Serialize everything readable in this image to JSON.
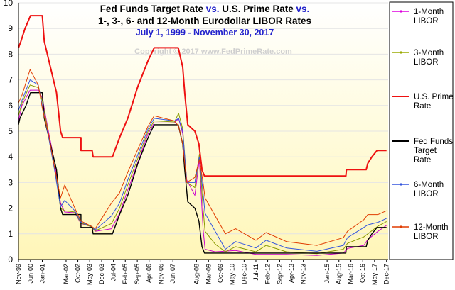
{
  "chart_data": {
    "type": "line",
    "title_parts": [
      {
        "text": "Fed Funds Target Rate ",
        "color": "#000000"
      },
      {
        "text": "vs.",
        "color": "#2222cc"
      },
      {
        "text": " U.S. Prime Rate ",
        "color": "#000000"
      },
      {
        "text": "vs.",
        "color": "#2222cc"
      }
    ],
    "title_line2": "1-, 3-, 6- and 12-Month Eurodollar LIBOR Rates",
    "subtitle": "July 1, 1999 - November 30, 2017",
    "watermark": "Copyright © 2017 www.FedPrimeRate.com",
    "ylim": [
      0,
      10
    ],
    "yticks": [
      "0",
      "1",
      "2",
      "3",
      "4",
      "5",
      "6",
      "7",
      "8",
      "9",
      "10"
    ],
    "xlim": [
      1999.83,
      2018.0
    ],
    "xticks": [
      {
        "label": "Nov-99",
        "x": 1999.83
      },
      {
        "label": "Jun-00",
        "x": 2000.42
      },
      {
        "label": "Jan-01",
        "x": 2001.0
      },
      {
        "label": "Mar-02",
        "x": 2002.17
      },
      {
        "label": "Oct-02",
        "x": 2002.75
      },
      {
        "label": "May-03",
        "x": 2003.33
      },
      {
        "label": "Dec-03",
        "x": 2003.92
      },
      {
        "label": "Jul-04",
        "x": 2004.5
      },
      {
        "label": "Feb-05",
        "x": 2005.08
      },
      {
        "label": "Sep-05",
        "x": 2005.67
      },
      {
        "label": "Apr-06",
        "x": 2006.25
      },
      {
        "label": "Nov-06",
        "x": 2006.83
      },
      {
        "label": "Jun-07",
        "x": 2007.42
      },
      {
        "label": "Aug-08",
        "x": 2008.58
      },
      {
        "label": "Mar-09",
        "x": 2009.17
      },
      {
        "label": "Oct-09",
        "x": 2009.75
      },
      {
        "label": "May-10",
        "x": 2010.33
      },
      {
        "label": "Dec-10",
        "x": 2010.92
      },
      {
        "label": "Jul-11",
        "x": 2011.5
      },
      {
        "label": "Feb-12",
        "x": 2012.08
      },
      {
        "label": "Sep-12",
        "x": 2012.67
      },
      {
        "label": "Apr-13",
        "x": 2013.25
      },
      {
        "label": "Nov-13",
        "x": 2013.83
      },
      {
        "label": "Jan-15",
        "x": 2015.0
      },
      {
        "label": "Aug-15",
        "x": 2015.58
      },
      {
        "label": "Mar-16",
        "x": 2016.17
      },
      {
        "label": "Oct-16",
        "x": 2016.75
      },
      {
        "label": "May-17",
        "x": 2017.33
      },
      {
        "label": "Dec-17",
        "x": 2017.92
      }
    ],
    "series": [
      {
        "name": "1-Month LIBOR",
        "color": "#cc00cc",
        "legend_color": "#dd00dd",
        "marker": "dash",
        "points": [
          [
            1999.5,
            5.4
          ],
          [
            2000.0,
            6.0
          ],
          [
            2000.4,
            6.6
          ],
          [
            2000.8,
            6.6
          ],
          [
            2001.0,
            6.3
          ],
          [
            2001.3,
            5.0
          ],
          [
            2001.6,
            3.8
          ],
          [
            2001.9,
            2.2
          ],
          [
            2002.1,
            1.85
          ],
          [
            2002.6,
            1.82
          ],
          [
            2002.9,
            1.4
          ],
          [
            2003.4,
            1.28
          ],
          [
            2003.6,
            1.1
          ],
          [
            2004.4,
            1.2
          ],
          [
            2004.8,
            1.8
          ],
          [
            2005.2,
            2.7
          ],
          [
            2005.7,
            3.8
          ],
          [
            2006.2,
            4.9
          ],
          [
            2006.5,
            5.32
          ],
          [
            2007.5,
            5.32
          ],
          [
            2007.7,
            5.5
          ],
          [
            2007.9,
            4.9
          ],
          [
            2008.1,
            3.1
          ],
          [
            2008.5,
            2.5
          ],
          [
            2008.72,
            3.9
          ],
          [
            2008.9,
            1.2
          ],
          [
            2009.0,
            0.4
          ],
          [
            2009.5,
            0.3
          ],
          [
            2010.5,
            0.35
          ],
          [
            2011.5,
            0.2
          ],
          [
            2013.0,
            0.2
          ],
          [
            2014.5,
            0.16
          ],
          [
            2015.8,
            0.25
          ],
          [
            2016.0,
            0.43
          ],
          [
            2016.8,
            0.55
          ],
          [
            2017.0,
            0.78
          ],
          [
            2017.5,
            1.1
          ],
          [
            2017.92,
            1.33
          ]
        ]
      },
      {
        "name": "3-Month LIBOR",
        "color": "#8a9a00",
        "legend_color": "#9aaa00",
        "marker": "dot",
        "points": [
          [
            1999.5,
            5.6
          ],
          [
            2000.0,
            6.1
          ],
          [
            2000.4,
            6.8
          ],
          [
            2000.8,
            6.7
          ],
          [
            2001.0,
            6.2
          ],
          [
            2001.3,
            4.9
          ],
          [
            2001.6,
            3.6
          ],
          [
            2001.9,
            2.0
          ],
          [
            2002.1,
            1.9
          ],
          [
            2002.6,
            1.85
          ],
          [
            2002.9,
            1.42
          ],
          [
            2003.4,
            1.28
          ],
          [
            2003.6,
            1.12
          ],
          [
            2004.4,
            1.4
          ],
          [
            2004.8,
            2.0
          ],
          [
            2005.2,
            2.9
          ],
          [
            2005.7,
            3.95
          ],
          [
            2006.2,
            5.0
          ],
          [
            2006.5,
            5.4
          ],
          [
            2007.5,
            5.36
          ],
          [
            2007.7,
            5.7
          ],
          [
            2007.9,
            5.1
          ],
          [
            2008.1,
            3.0
          ],
          [
            2008.5,
            2.8
          ],
          [
            2008.72,
            4.1
          ],
          [
            2008.9,
            2.0
          ],
          [
            2009.0,
            1.1
          ],
          [
            2009.5,
            0.6
          ],
          [
            2010.0,
            0.3
          ],
          [
            2010.5,
            0.5
          ],
          [
            2011.5,
            0.3
          ],
          [
            2012.0,
            0.55
          ],
          [
            2013.0,
            0.3
          ],
          [
            2014.5,
            0.23
          ],
          [
            2015.8,
            0.4
          ],
          [
            2016.0,
            0.63
          ],
          [
            2016.8,
            0.88
          ],
          [
            2017.0,
            1.0
          ],
          [
            2017.5,
            1.3
          ],
          [
            2017.92,
            1.48
          ]
        ]
      },
      {
        "name": "U.S. Prime Rate",
        "color": "#ee1111",
        "legend_color": "#ee1111",
        "marker": "none",
        "width": 2,
        "points": [
          [
            1999.5,
            8.25
          ],
          [
            1999.95,
            8.5
          ],
          [
            2000.15,
            9.0
          ],
          [
            2000.42,
            9.5
          ],
          [
            2001.0,
            9.5
          ],
          [
            2001.1,
            8.5
          ],
          [
            2001.4,
            7.5
          ],
          [
            2001.7,
            6.5
          ],
          [
            2001.9,
            5.0
          ],
          [
            2002.0,
            4.75
          ],
          [
            2002.9,
            4.75
          ],
          [
            2002.9,
            4.25
          ],
          [
            2003.45,
            4.25
          ],
          [
            2003.5,
            4.0
          ],
          [
            2004.45,
            4.0
          ],
          [
            2004.8,
            4.75
          ],
          [
            2005.2,
            5.5
          ],
          [
            2005.7,
            6.75
          ],
          [
            2006.2,
            7.75
          ],
          [
            2006.5,
            8.25
          ],
          [
            2007.68,
            8.25
          ],
          [
            2007.9,
            7.5
          ],
          [
            2008.0,
            6.5
          ],
          [
            2008.15,
            5.25
          ],
          [
            2008.5,
            5.0
          ],
          [
            2008.7,
            4.5
          ],
          [
            2008.85,
            3.5
          ],
          [
            2008.97,
            3.25
          ],
          [
            2015.92,
            3.25
          ],
          [
            2015.95,
            3.5
          ],
          [
            2016.92,
            3.5
          ],
          [
            2017.0,
            3.75
          ],
          [
            2017.2,
            4.0
          ],
          [
            2017.45,
            4.25
          ],
          [
            2017.92,
            4.25
          ]
        ]
      },
      {
        "name": "Fed Funds Target Rate",
        "color": "#000000",
        "legend_color": "#000000",
        "marker": "none",
        "width": 1.4,
        "points": [
          [
            1999.5,
            5.25
          ],
          [
            1999.9,
            5.5
          ],
          [
            2000.2,
            6.0
          ],
          [
            2000.42,
            6.5
          ],
          [
            2001.0,
            6.5
          ],
          [
            2001.1,
            5.5
          ],
          [
            2001.4,
            4.5
          ],
          [
            2001.7,
            3.5
          ],
          [
            2001.9,
            2.0
          ],
          [
            2002.0,
            1.75
          ],
          [
            2002.9,
            1.75
          ],
          [
            2002.9,
            1.25
          ],
          [
            2003.45,
            1.25
          ],
          [
            2003.5,
            1.0
          ],
          [
            2004.45,
            1.0
          ],
          [
            2004.8,
            1.75
          ],
          [
            2005.2,
            2.5
          ],
          [
            2005.7,
            3.75
          ],
          [
            2006.2,
            4.75
          ],
          [
            2006.5,
            5.25
          ],
          [
            2007.68,
            5.25
          ],
          [
            2007.9,
            4.5
          ],
          [
            2008.0,
            3.5
          ],
          [
            2008.15,
            2.25
          ],
          [
            2008.5,
            2.0
          ],
          [
            2008.7,
            1.5
          ],
          [
            2008.85,
            0.5
          ],
          [
            2008.97,
            0.25
          ],
          [
            2015.92,
            0.25
          ],
          [
            2015.95,
            0.5
          ],
          [
            2016.92,
            0.5
          ],
          [
            2017.0,
            0.75
          ],
          [
            2017.2,
            1.0
          ],
          [
            2017.45,
            1.25
          ],
          [
            2017.92,
            1.25
          ]
        ]
      },
      {
        "name": "6-Month LIBOR",
        "color": "#3355dd",
        "legend_color": "#3355dd",
        "marker": "dot",
        "points": [
          [
            1999.5,
            5.8
          ],
          [
            2000.0,
            6.2
          ],
          [
            2000.4,
            7.0
          ],
          [
            2000.8,
            6.8
          ],
          [
            2001.0,
            6.0
          ],
          [
            2001.3,
            4.8
          ],
          [
            2001.6,
            3.5
          ],
          [
            2001.9,
            2.05
          ],
          [
            2002.1,
            2.3
          ],
          [
            2002.6,
            1.9
          ],
          [
            2002.9,
            1.45
          ],
          [
            2003.4,
            1.3
          ],
          [
            2003.6,
            1.15
          ],
          [
            2004.4,
            1.7
          ],
          [
            2004.8,
            2.2
          ],
          [
            2005.2,
            3.1
          ],
          [
            2005.7,
            4.1
          ],
          [
            2006.2,
            5.1
          ],
          [
            2006.5,
            5.5
          ],
          [
            2007.5,
            5.4
          ],
          [
            2007.7,
            5.5
          ],
          [
            2007.9,
            5.0
          ],
          [
            2008.1,
            3.0
          ],
          [
            2008.5,
            3.0
          ],
          [
            2008.72,
            4.0
          ],
          [
            2008.9,
            2.6
          ],
          [
            2009.0,
            1.8
          ],
          [
            2009.5,
            1.1
          ],
          [
            2010.0,
            0.4
          ],
          [
            2010.5,
            0.7
          ],
          [
            2011.5,
            0.45
          ],
          [
            2012.0,
            0.75
          ],
          [
            2013.0,
            0.45
          ],
          [
            2014.5,
            0.32
          ],
          [
            2015.8,
            0.55
          ],
          [
            2016.0,
            0.85
          ],
          [
            2016.8,
            1.25
          ],
          [
            2017.0,
            1.35
          ],
          [
            2017.5,
            1.45
          ],
          [
            2017.92,
            1.6
          ]
        ]
      },
      {
        "name": "12-Month LIBOR",
        "color": "#e03c00",
        "legend_color": "#e03c00",
        "marker": "dot",
        "points": [
          [
            1999.5,
            6.1
          ],
          [
            2000.0,
            6.4
          ],
          [
            2000.4,
            7.4
          ],
          [
            2000.8,
            6.8
          ],
          [
            2001.0,
            5.9
          ],
          [
            2001.3,
            4.9
          ],
          [
            2001.6,
            3.6
          ],
          [
            2001.9,
            2.4
          ],
          [
            2002.1,
            2.9
          ],
          [
            2002.6,
            2.0
          ],
          [
            2002.9,
            1.5
          ],
          [
            2003.4,
            1.3
          ],
          [
            2003.6,
            1.2
          ],
          [
            2004.4,
            2.2
          ],
          [
            2004.8,
            2.6
          ],
          [
            2005.2,
            3.4
          ],
          [
            2005.7,
            4.3
          ],
          [
            2006.2,
            5.2
          ],
          [
            2006.5,
            5.6
          ],
          [
            2007.5,
            5.4
          ],
          [
            2007.7,
            5.2
          ],
          [
            2007.9,
            4.5
          ],
          [
            2008.1,
            3.0
          ],
          [
            2008.5,
            3.2
          ],
          [
            2008.72,
            3.9
          ],
          [
            2008.9,
            3.0
          ],
          [
            2009.0,
            2.4
          ],
          [
            2009.5,
            1.7
          ],
          [
            2010.0,
            1.0
          ],
          [
            2010.5,
            1.2
          ],
          [
            2011.5,
            0.75
          ],
          [
            2012.0,
            1.05
          ],
          [
            2013.0,
            0.7
          ],
          [
            2014.5,
            0.55
          ],
          [
            2015.8,
            0.85
          ],
          [
            2016.0,
            1.1
          ],
          [
            2016.8,
            1.55
          ],
          [
            2017.0,
            1.75
          ],
          [
            2017.5,
            1.75
          ],
          [
            2017.92,
            1.9
          ]
        ]
      }
    ]
  }
}
